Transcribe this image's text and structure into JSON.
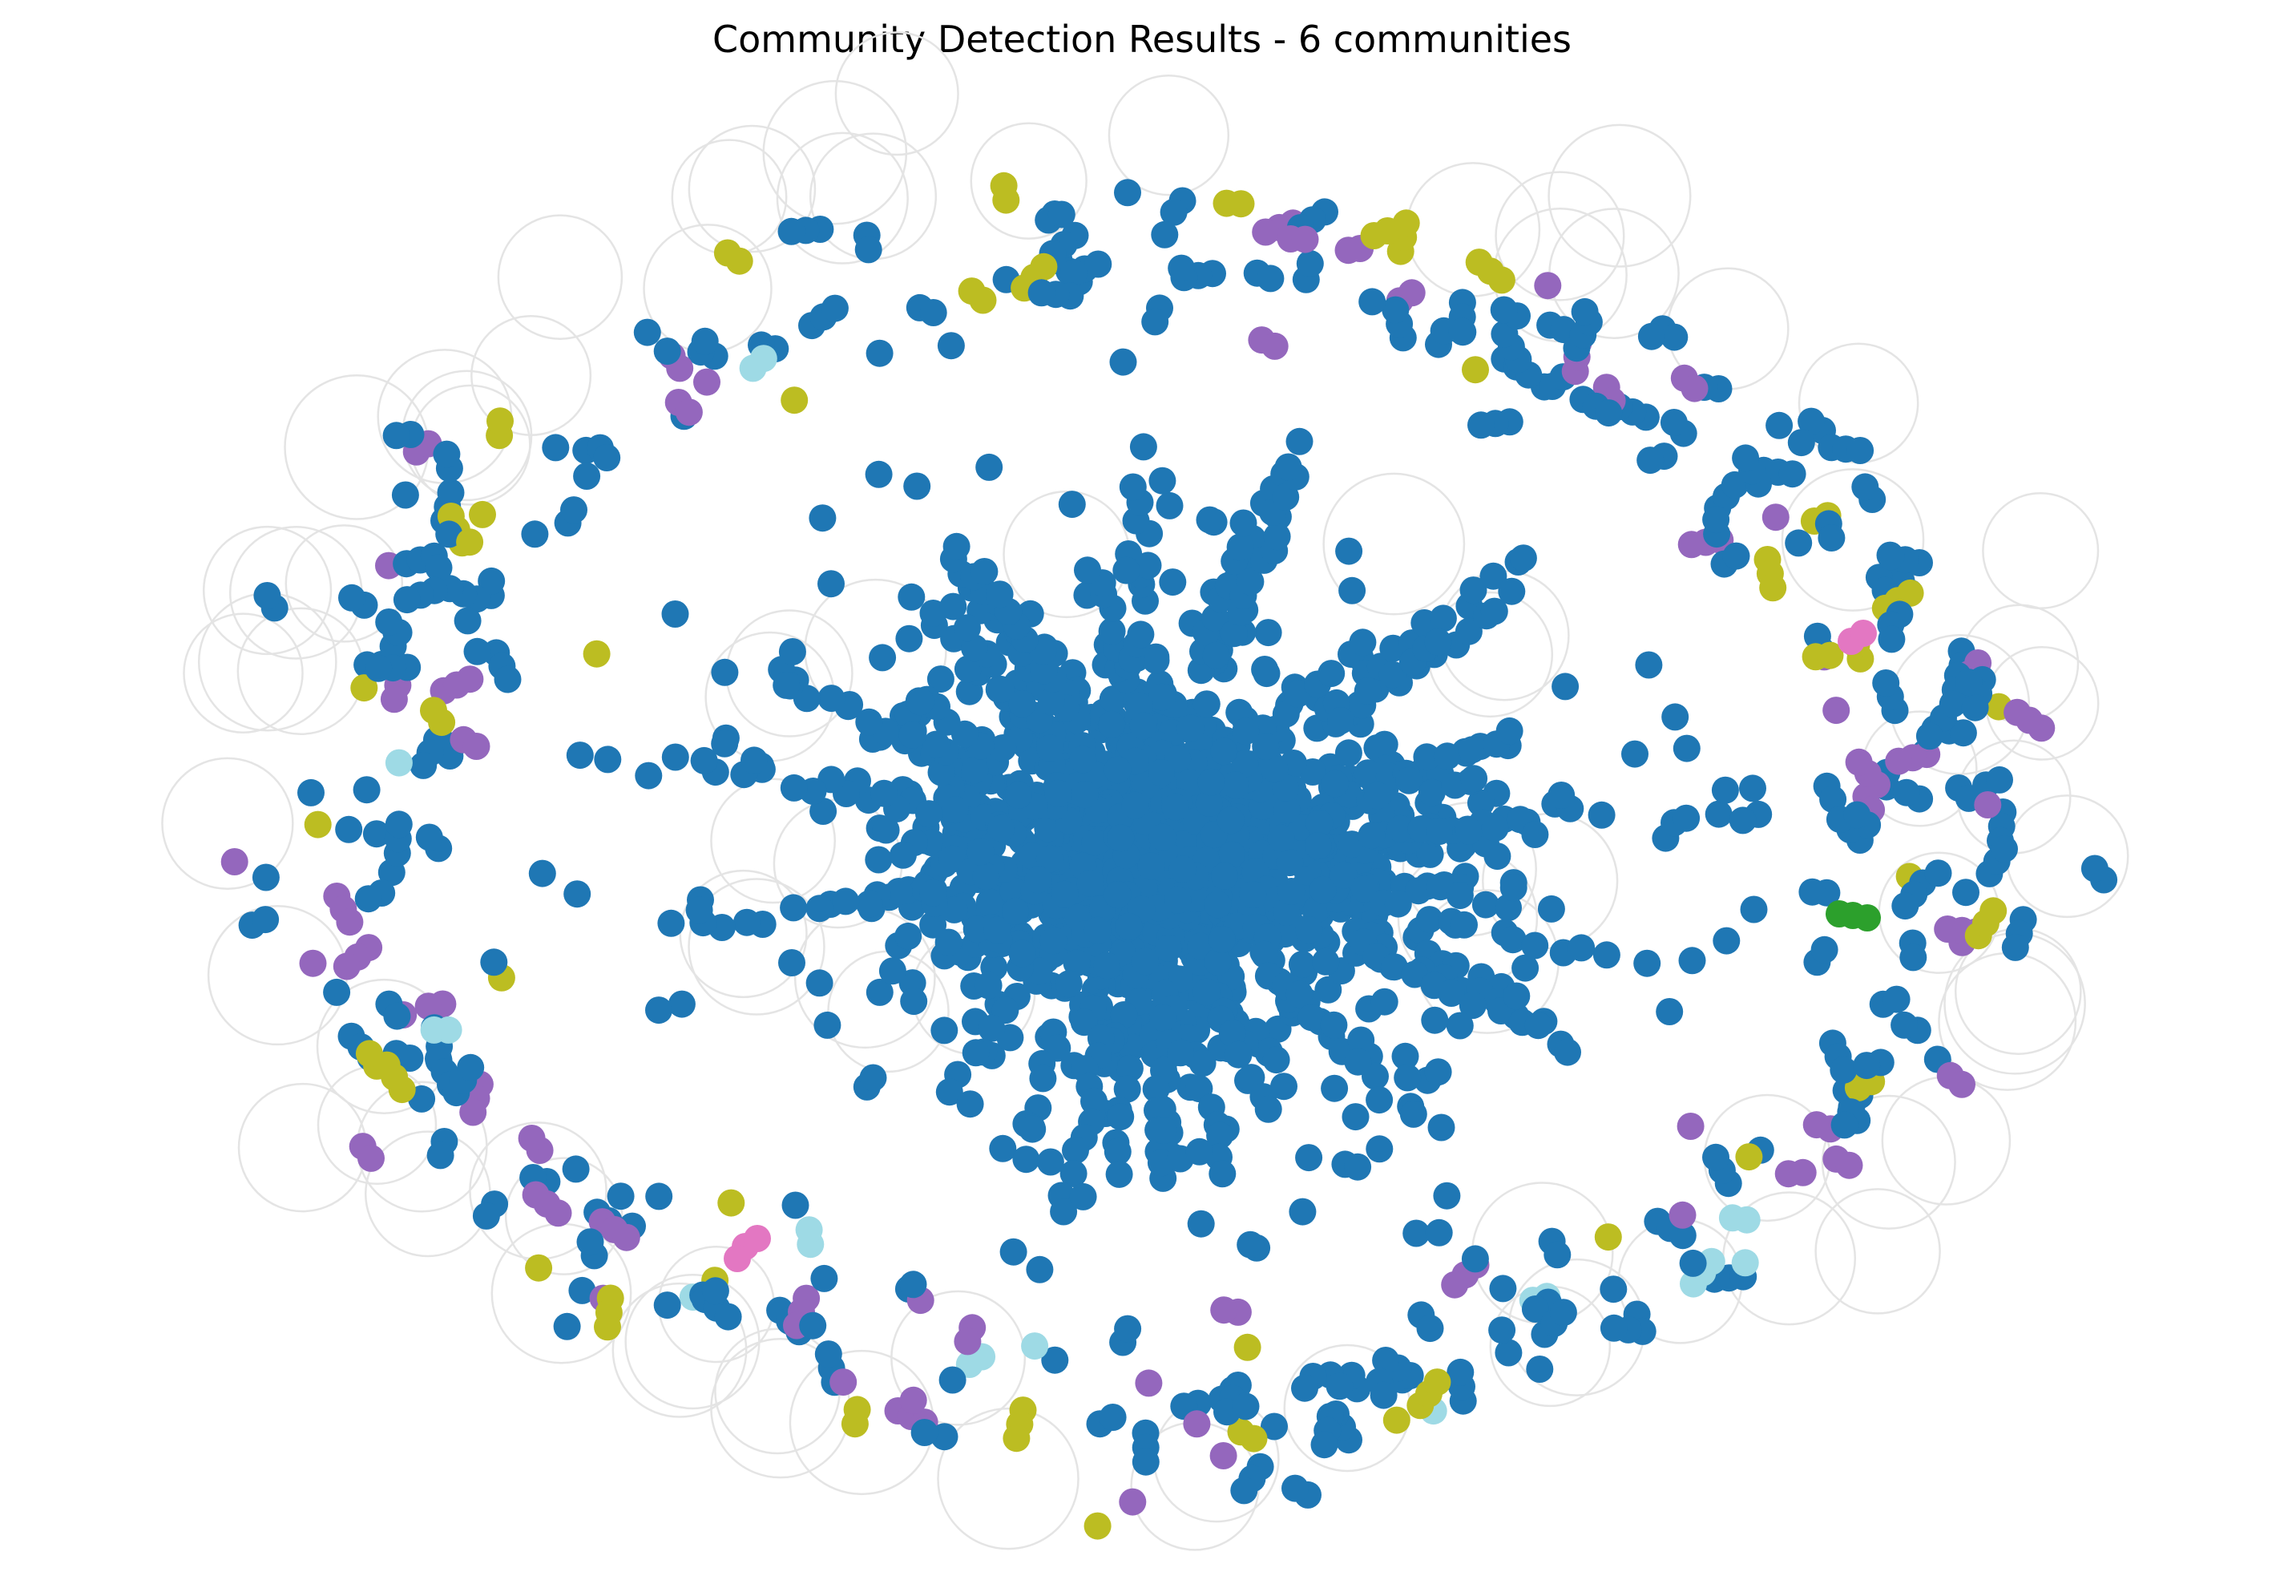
{
  "title": "Community Detection Results - 6 communities",
  "community_colors": [
    "#1f77b4",
    "#9467bd",
    "#bcbd22",
    "#9edae5",
    "#e377c2",
    "#2ca02c"
  ],
  "self_loop_color": "#e4e4e4"
}
